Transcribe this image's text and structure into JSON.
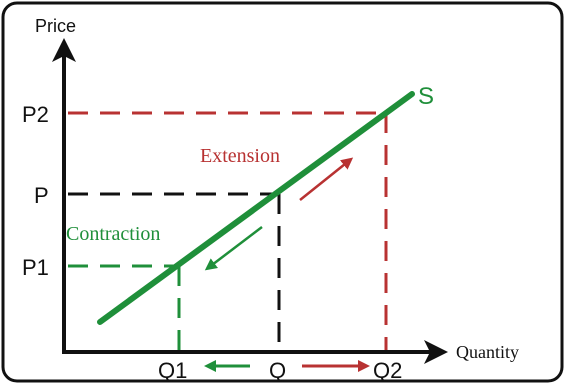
{
  "axes": {
    "y_label": "Price",
    "x_label": "Quantity"
  },
  "curve": {
    "label": "S",
    "color": "#1f8f3a"
  },
  "price_levels": {
    "p2": "P2",
    "p": "P",
    "p1": "P1"
  },
  "quantity_levels": {
    "q1": "Q1",
    "q": "Q",
    "q2": "Q2"
  },
  "movements": {
    "extension": "Extension",
    "contraction": "Contraction"
  },
  "colors": {
    "extension": "#b83232",
    "contraction": "#1f8f3a",
    "equilibrium": "#111111",
    "frame": "#111111"
  }
}
